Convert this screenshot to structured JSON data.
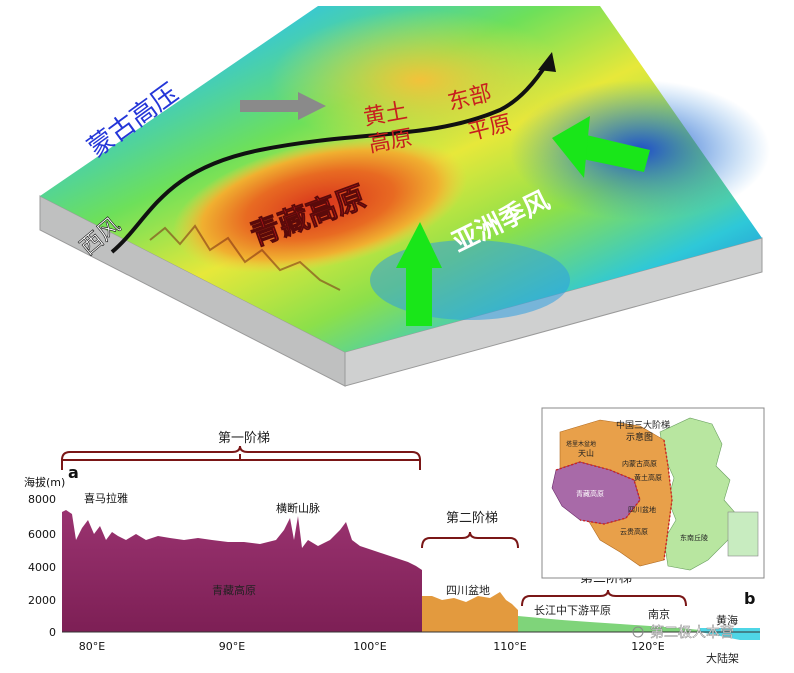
{
  "map3d": {
    "labels": {
      "mongolia_high": "蒙古高压",
      "loess_plateau": "黄土\n高原",
      "eastern_plain": "东部\n平原",
      "tibetan_plateau": "青藏高原",
      "asian_monsoon": "亚洲季风",
      "westerlies": "西风"
    },
    "colors": {
      "westerly_line": "#111111",
      "arrow_gray": "#8a8a8a",
      "arrow_green": "#19e619",
      "mongolia_label": "#2436d8",
      "loess_label": "#c81e1e",
      "plateau_label": "#d8191e",
      "monsoon_label": "#ffffff"
    }
  },
  "profile": {
    "panel_letter": "a",
    "panel_letter_b": "b",
    "y_axis_title": "海拔(m)",
    "y_ticks": [
      "8000",
      "6000",
      "4000",
      "2000",
      "0"
    ],
    "x_ticks": [
      "80°E",
      "90°E",
      "100°E",
      "110°E",
      "120°E"
    ],
    "steps": {
      "first": "第一阶梯",
      "second": "第二阶梯",
      "third": "第三阶梯"
    },
    "labels": {
      "himalaya": "喜马拉雅",
      "hengduan": "横断山脉",
      "tibetan_plateau": "青藏高原",
      "sichuan_basin": "四川盆地",
      "yangtze_plain": "长江中下游平原",
      "nanjing": "南京",
      "yellow_sea": "黄海",
      "continental_shelf": "大陆架"
    },
    "colors": {
      "step1_fill": "#8e2a63",
      "step2_fill": "#e39a3e",
      "step3_fill": "#7fd47a",
      "sea_fill": "#4fd6e6",
      "bracket": "#7a1616"
    }
  },
  "inset": {
    "title_line1": "中国三大阶梯",
    "title_line2": "示意图",
    "regions": [
      "天山",
      "塔里木盆地",
      "内蒙古高原",
      "黄土高原",
      "青藏高原",
      "四川盆地",
      "云贵高原",
      "东南丘陵"
    ],
    "colors": {
      "orange": "#e8a04a",
      "purple": "#a86aa8",
      "green": "#b8e6a0",
      "boundary": "#cc2222"
    }
  },
  "watermark": "第二极人本营"
}
